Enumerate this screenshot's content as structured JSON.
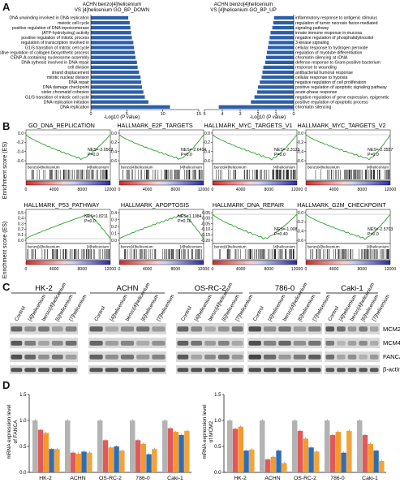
{
  "panels": {
    "a": "A",
    "b": "B",
    "c": "C",
    "d": "D"
  },
  "panelA": {
    "down": {
      "title_line1": "ACHN benzo[4]helicenium",
      "title_line2": "VS [4]helicenium GO_BP_DOWN",
      "xlabel": "-Log10 (P value)",
      "ticks": [
        "0",
        "5",
        "10",
        "15"
      ],
      "terms": [
        {
          "label": "DNA unwinding involved in DNA replication",
          "value": 5.2
        },
        {
          "label": "meiotic cell cycle",
          "value": 5.4
        },
        {
          "label": "positive regulation of DNA topoisomerase",
          "value": 5.5
        },
        {
          "label": "(ATP-hydrolyzing) activity",
          "value": 5.6
        },
        {
          "label": "positive regulation of mitotic process",
          "value": 5.7
        },
        {
          "label": "regulation of transcription involved in",
          "value": 5.9
        },
        {
          "label": "G1/S transition of mitotic cell cycle",
          "value": 6.0
        },
        {
          "label": "positive regulation of collagen biosynthetic process",
          "value": 6.1
        },
        {
          "label": "CENP-A containing nucleosome assembly",
          "value": 6.2
        },
        {
          "label": "DNA sythesis involved in DNA repair",
          "value": 6.4
        },
        {
          "label": "cell division",
          "value": 6.5
        },
        {
          "label": "strand displacement",
          "value": 6.7
        },
        {
          "label": "mitotic nuclear division",
          "value": 6.9
        },
        {
          "label": "DNA repair",
          "value": 7.0
        },
        {
          "label": "DNA damage checkpoint",
          "value": 7.1
        },
        {
          "label": "sister chromatid cohesion",
          "value": 7.3
        },
        {
          "label": "G1/S transition of mitotic cell cycle",
          "value": 7.5
        },
        {
          "label": "DNA replication initiation",
          "value": 8.0
        },
        {
          "label": "DNA replication",
          "value": 11.0
        }
      ]
    },
    "up": {
      "title_line1": "ACHN benzo[4]helicenium",
      "title_line2": "VS [4]helicenium GO_BP_UP",
      "xlabel": "-Log10 (P value)",
      "ticks": [
        "5",
        "4",
        "3",
        "2",
        "1",
        "0"
      ],
      "terms": [
        {
          "label": "inflammatory response to antigenic stimulus",
          "value": 1.1
        },
        {
          "label": "regulation of tumor necrosis factor-mediated",
          "value": 1.15
        },
        {
          "label": "signaling pathway",
          "value": 1.2
        },
        {
          "label": "innate immune response in mucosa",
          "value": 1.3
        },
        {
          "label": "negative regulation of phosphatidylinositol",
          "value": 1.35
        },
        {
          "label": "3-kinase signaling",
          "value": 1.4
        },
        {
          "label": "cellular response to hydrogen peroxide",
          "value": 1.45
        },
        {
          "label": "regulation of myotube differentiation",
          "value": 1.5
        },
        {
          "label": "chromatin silencing at rDNA",
          "value": 1.55
        },
        {
          "label": "defense response to Gram-positive bacterium",
          "value": 1.6
        },
        {
          "label": "response to wounding",
          "value": 1.7
        },
        {
          "label": "antibacterial humoral response",
          "value": 1.75
        },
        {
          "label": "cellular response to hypoxia",
          "value": 1.8
        },
        {
          "label": "negative regulation of cell proliferation",
          "value": 1.9
        },
        {
          "label": "positive regulation of apoptotic signaling pathway",
          "value": 2.0
        },
        {
          "label": "acute-phase response",
          "value": 2.05
        },
        {
          "label": "negative regulation of gene expression, epigenetic",
          "value": 2.2
        },
        {
          "label": "positive regulation of apoptotic process",
          "value": 2.4
        },
        {
          "label": "chromatin silencing",
          "value": 4.2
        }
      ]
    }
  },
  "panelB": {
    "ylabel": "Enrichment score (ES)",
    "ranks": [
      "0",
      "4000",
      "8000",
      "12000"
    ],
    "left_label": "benzo[4]helicenium",
    "right_label": "[4]helicenium",
    "plots": [
      {
        "title": "GO_DNA_REPLICATION",
        "nes": "NES=-2.0502",
        "p": "P=0.0",
        "ticks": [
          "0.0",
          "-0.2",
          "-0.4",
          "-0.6"
        ],
        "shape": "neg",
        "peak": 0.66
      },
      {
        "title": "HALLMARK_E2F_TARGETS",
        "nes": "NES=-2.6414",
        "p": "P=0.0",
        "ticks": [
          "0.0",
          "-0.2",
          "-0.4",
          "-0.6"
        ],
        "shape": "neg",
        "peak": 0.72
      },
      {
        "title": "HALLMARK_MYC_TARGETS_V1",
        "nes": "NES=-2.3123",
        "p": "P=0.0",
        "ticks": [
          "0.0",
          "-0.2",
          "-0.4",
          "-0.6"
        ],
        "shape": "neg",
        "peak": 0.7
      },
      {
        "title": "HALLMARK_MYC_TARGETS_V2",
        "nes": "NES=-2.3557",
        "p": "P=0.0",
        "ticks": [
          "0.0",
          "-0.2",
          "-0.4",
          "-0.6"
        ],
        "shape": "neg",
        "peak": 0.75
      },
      {
        "title": "HALLMARK_P53_PATHWAY",
        "nes": "NES=1.8211",
        "p": "P=0.0",
        "ticks": [
          "0.5",
          "0.4",
          "0.3",
          "0.2",
          "0.1",
          "0.0"
        ],
        "shape": "pos",
        "peak": 0.74
      },
      {
        "title": "HALLMARK_APOPTOSIS",
        "nes": "NES=1.1984",
        "p": "P=0.16",
        "ticks": [
          "0.4",
          "0.3",
          "0.2",
          "0.1",
          "0.0"
        ],
        "shape": "pos",
        "peak": 0.76
      },
      {
        "title": "HALLMARK_DNA_REPAIR",
        "nes": "NES=-1.008",
        "p": "P=0.40",
        "ticks": [
          "0.05",
          "0.00",
          "-0.05",
          "-0.10",
          "-0.15",
          "-0.20"
        ],
        "shape": "neg",
        "peak": 0.62
      },
      {
        "title": "HALLMARK_G2M_CHECKPOINT",
        "nes": "NES=-2.5703",
        "p": "P=0.0",
        "ticks": [
          "0.0",
          "-0.2",
          "-0.4",
          "-0.6"
        ],
        "shape": "neg",
        "peak": 0.7
      }
    ]
  },
  "panelC": {
    "cell_lines": [
      "HK-2",
      "ACHN",
      "OS-RC-2",
      "786-0",
      "Caki-1"
    ],
    "lanes": [
      "Control",
      "[4]helicenium",
      "benzo[4]helicenium",
      "[6]helicenium",
      "[7]helicenium"
    ],
    "proteins": [
      "MCM2",
      "MCM4",
      "FANCA",
      "β-actin"
    ]
  },
  "panelD": {
    "colors": {
      "Control": "#b3b3b3",
      "[4]helicenium": "#e05a5a",
      "benzo[4]helicenium": "#f29a2e",
      "[6]helicenium": "#2f6db3",
      "[7]helicenium": "#f2a33a"
    },
    "fanca": {
      "ylabel_line1": "mRNA expression level",
      "ylabel_line2": "of FANCA",
      "ticks": [
        "0.0",
        "0.5",
        "1.0",
        "1.5"
      ],
      "categories": [
        "HK-2",
        "ACHN",
        "OS-RC-2",
        "786-0",
        "Caki-1"
      ],
      "series": [
        {
          "values": [
            1.0,
            1.0,
            1.0,
            1.0,
            1.0
          ]
        },
        {
          "values": [
            0.82,
            0.38,
            0.62,
            0.62,
            0.85
          ]
        },
        {
          "values": [
            0.76,
            0.36,
            0.48,
            0.55,
            0.78
          ]
        },
        {
          "values": [
            0.45,
            0.4,
            0.5,
            0.35,
            0.72
          ]
        },
        {
          "values": [
            0.45,
            0.38,
            0.42,
            0.45,
            0.8
          ]
        }
      ],
      "stars": [
        "***",
        "****",
        "*** ****",
        "***",
        "**",
        "*",
        "**",
        "**",
        "***",
        "*",
        "**"
      ]
    },
    "mcm2": {
      "ylabel_line1": "mRNA expression level",
      "ylabel_line2": "of MCM2",
      "ticks": [
        "0.0",
        "0.5",
        "1.0",
        "1.5"
      ],
      "categories": [
        "HK-2",
        "ACHN",
        "OS-RC-2",
        "786-0",
        "Caki-1"
      ],
      "series": [
        {
          "values": [
            1.0,
            1.0,
            1.0,
            1.0,
            1.0
          ]
        },
        {
          "values": [
            0.84,
            0.25,
            0.8,
            0.72,
            0.72
          ]
        },
        {
          "values": [
            0.88,
            0.3,
            0.65,
            0.78,
            0.55
          ]
        },
        {
          "values": [
            0.42,
            0.42,
            0.48,
            0.38,
            0.42
          ]
        },
        {
          "values": [
            0.44,
            0.18,
            0.4,
            0.8,
            0.22
          ]
        }
      ],
      "stars": [
        "****",
        "***",
        "****",
        "**",
        "**",
        "****",
        "****",
        "*",
        "***",
        "*",
        "***"
      ]
    }
  }
}
